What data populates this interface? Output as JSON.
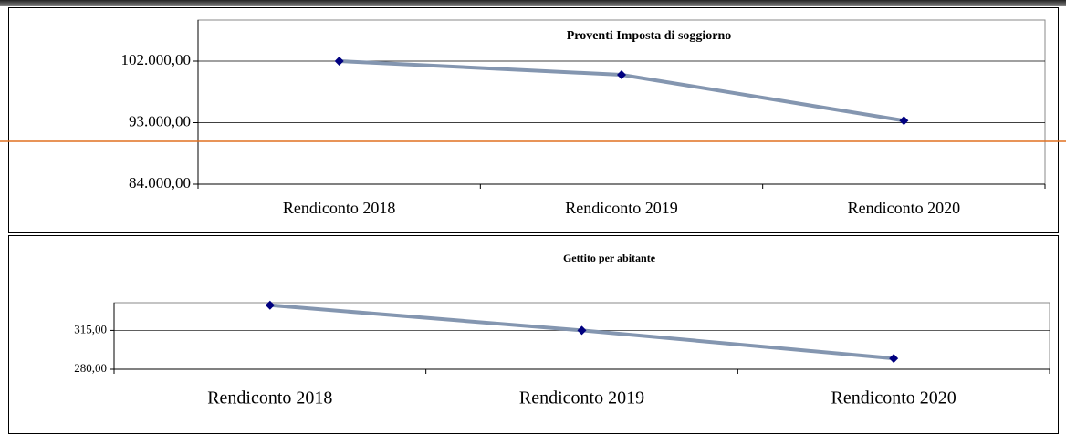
{
  "chart_data": [
    {
      "type": "line",
      "title": "Proventi Imposta di soggiorno",
      "categories": [
        "Rendiconto 2018",
        "Rendiconto 2019",
        "Rendiconto 2020"
      ],
      "series": [
        {
          "color": "#8496b0",
          "values": [
            102000,
            100000,
            93300
          ]
        }
      ],
      "ylim": [
        84000,
        108000
      ],
      "yticks": [
        {
          "value": 84000,
          "label": "84.000,00"
        },
        {
          "value": 93000,
          "label": "93.000,00"
        },
        {
          "value": 102000,
          "label": "102.000,00"
        }
      ],
      "grid": true
    },
    {
      "type": "line",
      "title": "Gettito per abitante",
      "categories": [
        "Rendiconto 2018",
        "Rendiconto 2019",
        "Rendiconto 2020"
      ],
      "series": [
        {
          "color": "#8496b0",
          "values": [
            337.7,
            315,
            289.8
          ]
        }
      ],
      "ylim": [
        280,
        340
      ],
      "yticks": [
        {
          "value": 280,
          "label": "280,00"
        },
        {
          "value": 315,
          "label": "315,00"
        }
      ],
      "grid": true
    }
  ]
}
